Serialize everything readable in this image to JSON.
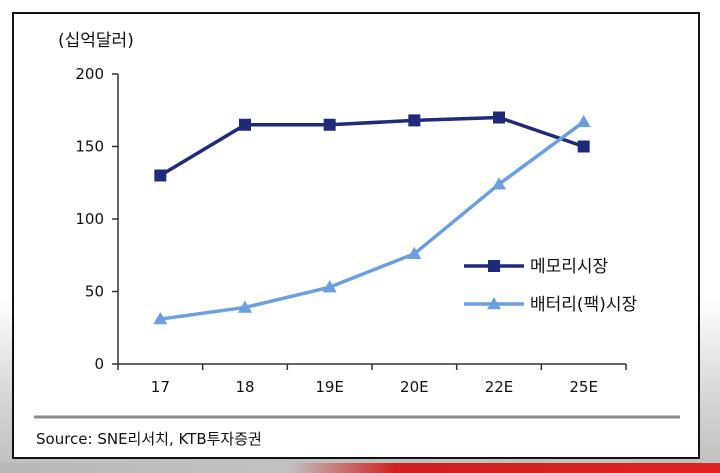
{
  "chart_data": {
    "type": "line",
    "unit_label": "(십억달러)",
    "categories": [
      "17",
      "18",
      "19E",
      "20E",
      "22E",
      "25E"
    ],
    "y_ticks": [
      "0",
      "50",
      "100",
      "150",
      "200"
    ],
    "ylim": [
      0,
      200
    ],
    "grid": false,
    "legend_position": "right",
    "series": [
      {
        "name": "메모리시장",
        "color": "#1f2a7a",
        "marker": "square",
        "values": [
          130,
          165,
          165,
          168,
          170,
          150
        ]
      },
      {
        "name": "배터리(팩)시장",
        "color": "#6a9fe0",
        "marker": "triangle",
        "values": [
          31,
          39,
          53,
          76,
          124,
          167
        ]
      }
    ],
    "source": "Source: SNE리서치, KTB투자증권"
  }
}
